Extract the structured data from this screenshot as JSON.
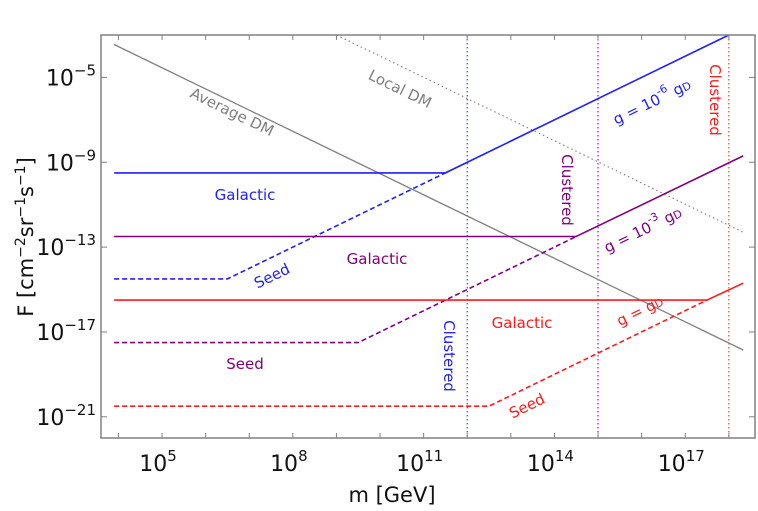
{
  "chart_data": {
    "type": "line",
    "xlabel": "m [GeV]",
    "ylabel_parts": [
      "F [cm",
      "−2",
      "sr",
      "−1",
      "s",
      "−1",
      "]"
    ],
    "x_scale": "log",
    "y_scale": "log",
    "xlim_log10": [
      3.6,
      18.6
    ],
    "ylim_log10": [
      -22,
      -3
    ],
    "grid": false,
    "x_ticks": [
      {
        "base": "10",
        "exp": "5",
        "log10": 5
      },
      {
        "base": "10",
        "exp": "8",
        "log10": 8
      },
      {
        "base": "10",
        "exp": "11",
        "log10": 11
      },
      {
        "base": "10",
        "exp": "14",
        "log10": 14
      },
      {
        "base": "10",
        "exp": "17",
        "log10": 17
      }
    ],
    "y_ticks": [
      {
        "base": "10",
        "exp": "−5",
        "log10": -5
      },
      {
        "base": "10",
        "exp": "−9",
        "log10": -9
      },
      {
        "base": "10",
        "exp": "−13",
        "log10": -13
      },
      {
        "base": "10",
        "exp": "−17",
        "log10": -17
      },
      {
        "base": "10",
        "exp": "−21",
        "log10": -21
      }
    ],
    "colors": {
      "blue": "#1f1fff",
      "purple": "#800080",
      "red": "#ff1a1a",
      "gray": "#7f7f7f"
    },
    "series": [
      {
        "key": "average-dm",
        "color": "gray",
        "style": "solid",
        "points_log10": [
          [
            3.9,
            -3.45
          ],
          [
            18.33,
            -17.85
          ]
        ]
      },
      {
        "key": "local-dm",
        "color": "gray",
        "style": "dotted",
        "points_log10": [
          [
            9.0,
            -3.0
          ],
          [
            18.33,
            -12.3
          ]
        ]
      },
      {
        "key": "blue-galactic",
        "color": "blue",
        "style": "solid",
        "points_log10": [
          [
            3.9,
            -9.5
          ],
          [
            11.5,
            -9.5
          ],
          [
            18.0,
            -3.0
          ]
        ]
      },
      {
        "key": "blue-seed",
        "color": "blue",
        "style": "dashed",
        "points_log10": [
          [
            3.9,
            -14.5
          ],
          [
            6.5,
            -14.5
          ],
          [
            11.5,
            -9.5
          ]
        ]
      },
      {
        "key": "purple-galactic",
        "color": "purple",
        "style": "solid",
        "points_log10": [
          [
            3.9,
            -12.5
          ],
          [
            14.5,
            -12.5
          ],
          [
            18.33,
            -8.7
          ]
        ]
      },
      {
        "key": "purple-seed",
        "color": "purple",
        "style": "dashed",
        "points_log10": [
          [
            3.9,
            -17.5
          ],
          [
            9.5,
            -17.5
          ],
          [
            14.5,
            -12.5
          ]
        ]
      },
      {
        "key": "red-galactic",
        "color": "red",
        "style": "solid",
        "points_log10": [
          [
            3.9,
            -15.5
          ],
          [
            17.5,
            -15.5
          ],
          [
            18.33,
            -14.7
          ]
        ]
      },
      {
        "key": "red-seed",
        "color": "red",
        "style": "dashed",
        "points_log10": [
          [
            3.9,
            -20.5
          ],
          [
            12.5,
            -20.5
          ],
          [
            17.5,
            -15.5
          ]
        ]
      }
    ],
    "vertical_lines": [
      {
        "key": "blue-clustered",
        "color": "blue",
        "x_log10": 12.0
      },
      {
        "key": "purple-clustered",
        "color": "purple",
        "x_log10": 15.0
      },
      {
        "key": "red-clustered",
        "color": "red",
        "x_log10": 18.0
      }
    ],
    "annotations": [
      {
        "text": "Average DM",
        "color": "gray"
      },
      {
        "text": "Local DM",
        "color": "gray"
      },
      {
        "text": "Galactic",
        "color": "blue"
      },
      {
        "text": "Seed",
        "color": "blue"
      },
      {
        "text": "Galactic",
        "color": "purple"
      },
      {
        "text": "Seed",
        "color": "purple"
      },
      {
        "text": "Galactic",
        "color": "red"
      },
      {
        "text": "Seed",
        "color": "red"
      },
      {
        "text": "Clustered",
        "color": "blue"
      },
      {
        "text": "Clustered",
        "color": "purple"
      },
      {
        "text": "Clustered",
        "color": "red"
      },
      {
        "text": "g = 10",
        "sup": "-6",
        "tail": " g",
        "sub": "D",
        "color": "blue"
      },
      {
        "text": "g = 10",
        "sup": "-3",
        "tail": " g",
        "sub": "D",
        "color": "purple"
      },
      {
        "text": "g = g",
        "sub": "D",
        "color": "red"
      }
    ]
  }
}
